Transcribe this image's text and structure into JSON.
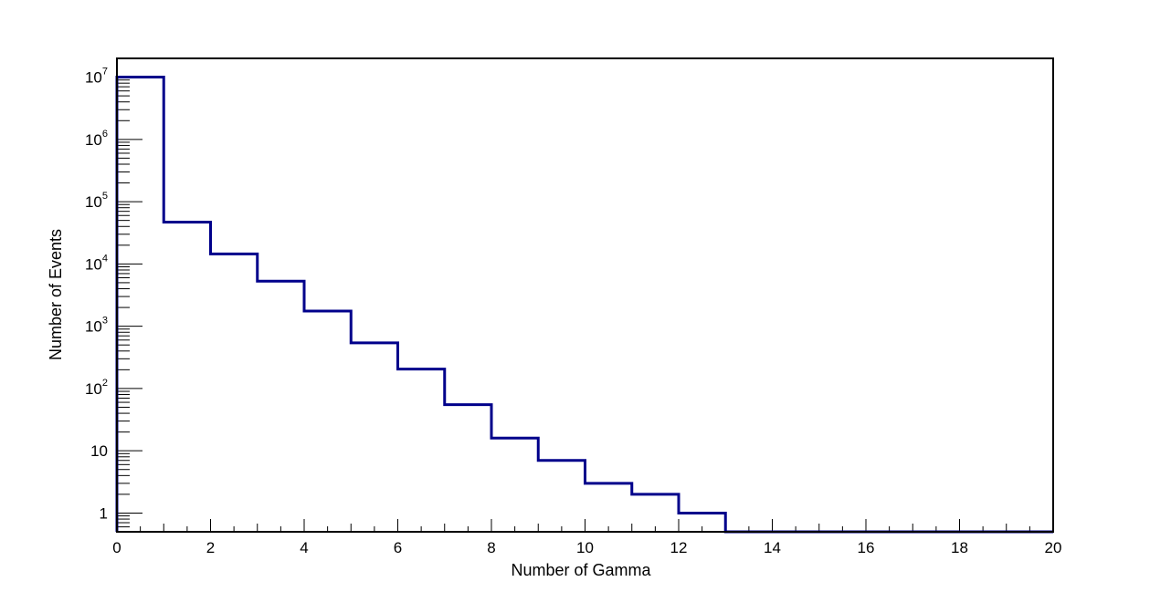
{
  "chart_data": {
    "type": "bar",
    "style": "step-histogram",
    "title": "",
    "xlabel": "Number of Gamma",
    "ylabel": "Number of Events",
    "xlim": [
      0,
      20
    ],
    "ylim": [
      0.5,
      20000000
    ],
    "yscale": "log",
    "grid": false,
    "legend": "none",
    "line_color": "#00008b",
    "x_bin_edges": [
      0,
      1,
      2,
      3,
      4,
      5,
      6,
      7,
      8,
      9,
      10,
      11,
      12,
      13,
      14,
      15,
      16,
      17,
      18,
      19,
      20
    ],
    "values": [
      10000000,
      47000,
      14500,
      5300,
      1750,
      540,
      205,
      55,
      16,
      7,
      3,
      2,
      1,
      0,
      0,
      0,
      0,
      0,
      0,
      0
    ],
    "x_ticks": [
      {
        "value": 0,
        "label": "0"
      },
      {
        "value": 2,
        "label": "2"
      },
      {
        "value": 4,
        "label": "4"
      },
      {
        "value": 6,
        "label": "6"
      },
      {
        "value": 8,
        "label": "8"
      },
      {
        "value": 10,
        "label": "10"
      },
      {
        "value": 12,
        "label": "12"
      },
      {
        "value": 14,
        "label": "14"
      },
      {
        "value": 16,
        "label": "16"
      },
      {
        "value": 18,
        "label": "18"
      },
      {
        "value": 20,
        "label": "20"
      }
    ],
    "y_ticks": [
      {
        "value": 1,
        "base": "1",
        "exp": ""
      },
      {
        "value": 10,
        "base": "10",
        "exp": ""
      },
      {
        "value": 100,
        "base": "10",
        "exp": "2"
      },
      {
        "value": 1000,
        "base": "10",
        "exp": "3"
      },
      {
        "value": 10000,
        "base": "10",
        "exp": "4"
      },
      {
        "value": 100000,
        "base": "10",
        "exp": "5"
      },
      {
        "value": 1000000,
        "base": "10",
        "exp": "6"
      },
      {
        "value": 10000000,
        "base": "10",
        "exp": "7"
      }
    ]
  }
}
